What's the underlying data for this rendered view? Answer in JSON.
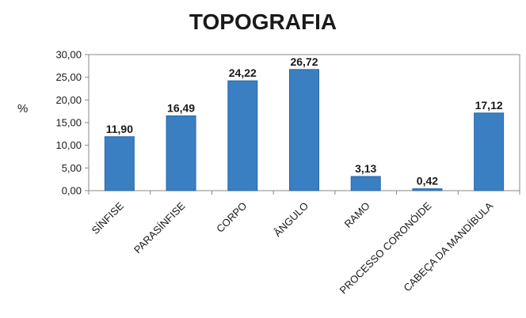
{
  "chart_data": {
    "type": "bar",
    "title": "TOPOGRAFIA",
    "ylabel": "%",
    "xlabel": "",
    "categories": [
      "SÍNFISE",
      "PARASÍNFISE",
      "CORPO",
      "ÂNGULO",
      "RAMO",
      "PROCESSO CORONÓIDE",
      "CABEÇA DA MANDÍBULA"
    ],
    "values": [
      11.9,
      16.49,
      24.22,
      26.72,
      3.13,
      0.42,
      17.12
    ],
    "data_labels": [
      "11,90",
      "16,49",
      "24,22",
      "26,72",
      "3,13",
      "0,42",
      "17,12"
    ],
    "ylim": [
      0,
      30
    ],
    "yticks": [
      0,
      5,
      10,
      15,
      20,
      25,
      30
    ],
    "ytick_labels": [
      "0,00",
      "5,00",
      "10,00",
      "15,00",
      "20,00",
      "25,00",
      "30,00"
    ],
    "grid": false,
    "legend": "none",
    "colors": {
      "bar": "#3a7fc1",
      "bar_edge": "#2a6aa8",
      "axis": "#888888",
      "plot_border": "#888888"
    }
  }
}
